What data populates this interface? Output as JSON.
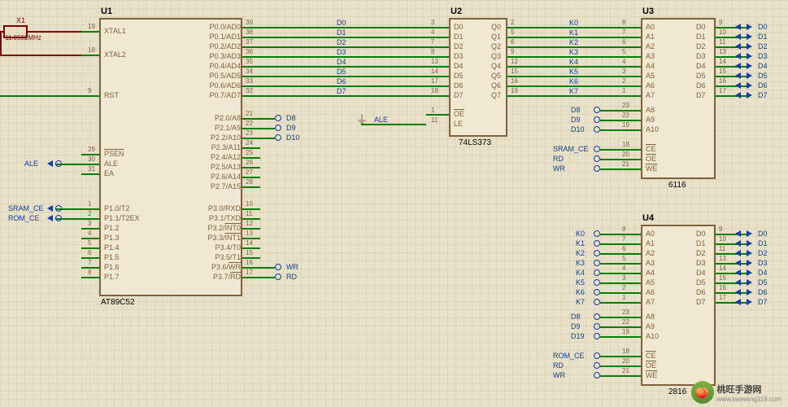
{
  "chips": {
    "u1": {
      "ref": "U1",
      "name": "AT89C52"
    },
    "u2": {
      "ref": "U2",
      "name": "74LS373"
    },
    "u3": {
      "ref": "U3",
      "name": "6116"
    },
    "u4": {
      "ref": "U4",
      "name": "2816"
    }
  },
  "crystal": {
    "ref": "X1",
    "freq": "11.0592MHz"
  },
  "u1_pins": {
    "xtal1": {
      "n": "19",
      "l": "XTAL1"
    },
    "xtal2": {
      "n": "18",
      "l": "XTAL2"
    },
    "rst": {
      "n": "9",
      "l": "RST"
    },
    "psen": {
      "n": "29",
      "l": "PSEN"
    },
    "ale": {
      "n": "30",
      "l": "ALE"
    },
    "ea": {
      "n": "31",
      "l": "EA"
    },
    "p10": {
      "n": "1",
      "l": "P1.0/T2"
    },
    "p11": {
      "n": "2",
      "l": "P1.1/T2EX"
    },
    "p12": {
      "n": "3",
      "l": "P1.2"
    },
    "p13": {
      "n": "4",
      "l": "P1.3"
    },
    "p14": {
      "n": "5",
      "l": "P1.4"
    },
    "p15": {
      "n": "6",
      "l": "P1.5"
    },
    "p16": {
      "n": "7",
      "l": "P1.6"
    },
    "p17": {
      "n": "8",
      "l": "P1.7"
    },
    "p00": {
      "n": "39",
      "l": "P0.0/AD0"
    },
    "p01": {
      "n": "38",
      "l": "P0.1/AD1"
    },
    "p02": {
      "n": "37",
      "l": "P0.2/AD2"
    },
    "p03": {
      "n": "36",
      "l": "P0.3/AD3"
    },
    "p04": {
      "n": "35",
      "l": "P0.4/AD4"
    },
    "p05": {
      "n": "34",
      "l": "P0.5/AD5"
    },
    "p06": {
      "n": "33",
      "l": "P0.6/AD6"
    },
    "p07": {
      "n": "32",
      "l": "P0.7/AD7"
    },
    "p20": {
      "n": "21",
      "l": "P2.0/A8"
    },
    "p21": {
      "n": "22",
      "l": "P2.1/A9"
    },
    "p22": {
      "n": "23",
      "l": "P2.2/A10"
    },
    "p23": {
      "n": "24",
      "l": "P2.3/A11"
    },
    "p24": {
      "n": "25",
      "l": "P2.4/A12"
    },
    "p25": {
      "n": "26",
      "l": "P2.5/A13"
    },
    "p26": {
      "n": "27",
      "l": "P2.6/A14"
    },
    "p27": {
      "n": "28",
      "l": "P2.7/A15"
    },
    "p30": {
      "n": "10",
      "l": "P3.0/RXD"
    },
    "p31": {
      "n": "11",
      "l": "P3.1/TXD"
    },
    "p32": {
      "n": "12",
      "l": "P3.2/INT0"
    },
    "p33": {
      "n": "13",
      "l": "P3.3/INT1"
    },
    "p34": {
      "n": "14",
      "l": "P3.4/T0"
    },
    "p35": {
      "n": "15",
      "l": "P3.5/T1"
    },
    "p36": {
      "n": "16",
      "l": "P3.6/WR"
    },
    "p37": {
      "n": "17",
      "l": "P3.7/RD"
    }
  },
  "u2_pins": {
    "d0": {
      "n": "3",
      "l": "D0"
    },
    "d1": {
      "n": "4",
      "l": "D1"
    },
    "d2": {
      "n": "7",
      "l": "D2"
    },
    "d3": {
      "n": "8",
      "l": "D3"
    },
    "d4": {
      "n": "13",
      "l": "D4"
    },
    "d5": {
      "n": "14",
      "l": "D5"
    },
    "d6": {
      "n": "17",
      "l": "D6"
    },
    "d7": {
      "n": "18",
      "l": "D7"
    },
    "q0": {
      "n": "2",
      "l": "Q0"
    },
    "q1": {
      "n": "5",
      "l": "Q1"
    },
    "q2": {
      "n": "6",
      "l": "Q2"
    },
    "q3": {
      "n": "9",
      "l": "Q3"
    },
    "q4": {
      "n": "12",
      "l": "Q4"
    },
    "q5": {
      "n": "15",
      "l": "Q5"
    },
    "q6": {
      "n": "16",
      "l": "Q6"
    },
    "q7": {
      "n": "19",
      "l": "Q7"
    },
    "oe": {
      "n": "1",
      "l": "OE"
    },
    "le": {
      "n": "11",
      "l": "LE"
    }
  },
  "u3_pins": {
    "a0": {
      "n": "8",
      "l": "A0"
    },
    "a1": {
      "n": "7",
      "l": "A1"
    },
    "a2": {
      "n": "6",
      "l": "A2"
    },
    "a3": {
      "n": "5",
      "l": "A3"
    },
    "a4": {
      "n": "4",
      "l": "A4"
    },
    "a5": {
      "n": "3",
      "l": "A5"
    },
    "a6": {
      "n": "2",
      "l": "A6"
    },
    "a7": {
      "n": "1",
      "l": "A7"
    },
    "a8": {
      "n": "23",
      "l": "A8"
    },
    "a9": {
      "n": "22",
      "l": "A9"
    },
    "a10": {
      "n": "19",
      "l": "A10"
    },
    "ce": {
      "n": "18",
      "l": "CE"
    },
    "oe": {
      "n": "20",
      "l": "OE"
    },
    "we": {
      "n": "21",
      "l": "WE"
    },
    "d0": {
      "n": "9",
      "l": "D0"
    },
    "d1": {
      "n": "10",
      "l": "D1"
    },
    "d2": {
      "n": "11",
      "l": "D2"
    },
    "d3": {
      "n": "13",
      "l": "D3"
    },
    "d4": {
      "n": "14",
      "l": "D4"
    },
    "d5": {
      "n": "15",
      "l": "D5"
    },
    "d6": {
      "n": "16",
      "l": "D6"
    },
    "d7": {
      "n": "17",
      "l": "D7"
    }
  },
  "nets": {
    "d": [
      "D0",
      "D1",
      "D2",
      "D3",
      "D4",
      "D5",
      "D6",
      "D7"
    ],
    "k": [
      "K0",
      "K1",
      "K2",
      "K3",
      "K4",
      "K5",
      "K6",
      "K7"
    ],
    "d8": "D8",
    "d9": "D9",
    "d10": "D10",
    "d19": "D19",
    "ale": "ALE",
    "sram_ce": "SRAM_CE",
    "rom_ce": "ROM_CE",
    "rd": "RD",
    "wr": "WR"
  },
  "watermark": {
    "text": "桃旺手游网",
    "url": "www.taowang119.com"
  },
  "colors": {
    "bg": "#e8e0c8",
    "grid": "#d4cca8",
    "chip_border": "#806040",
    "chip_fill": "#f0e8d0",
    "wire": "#008000",
    "wire_power": "#800000",
    "net": "#1040a0"
  }
}
